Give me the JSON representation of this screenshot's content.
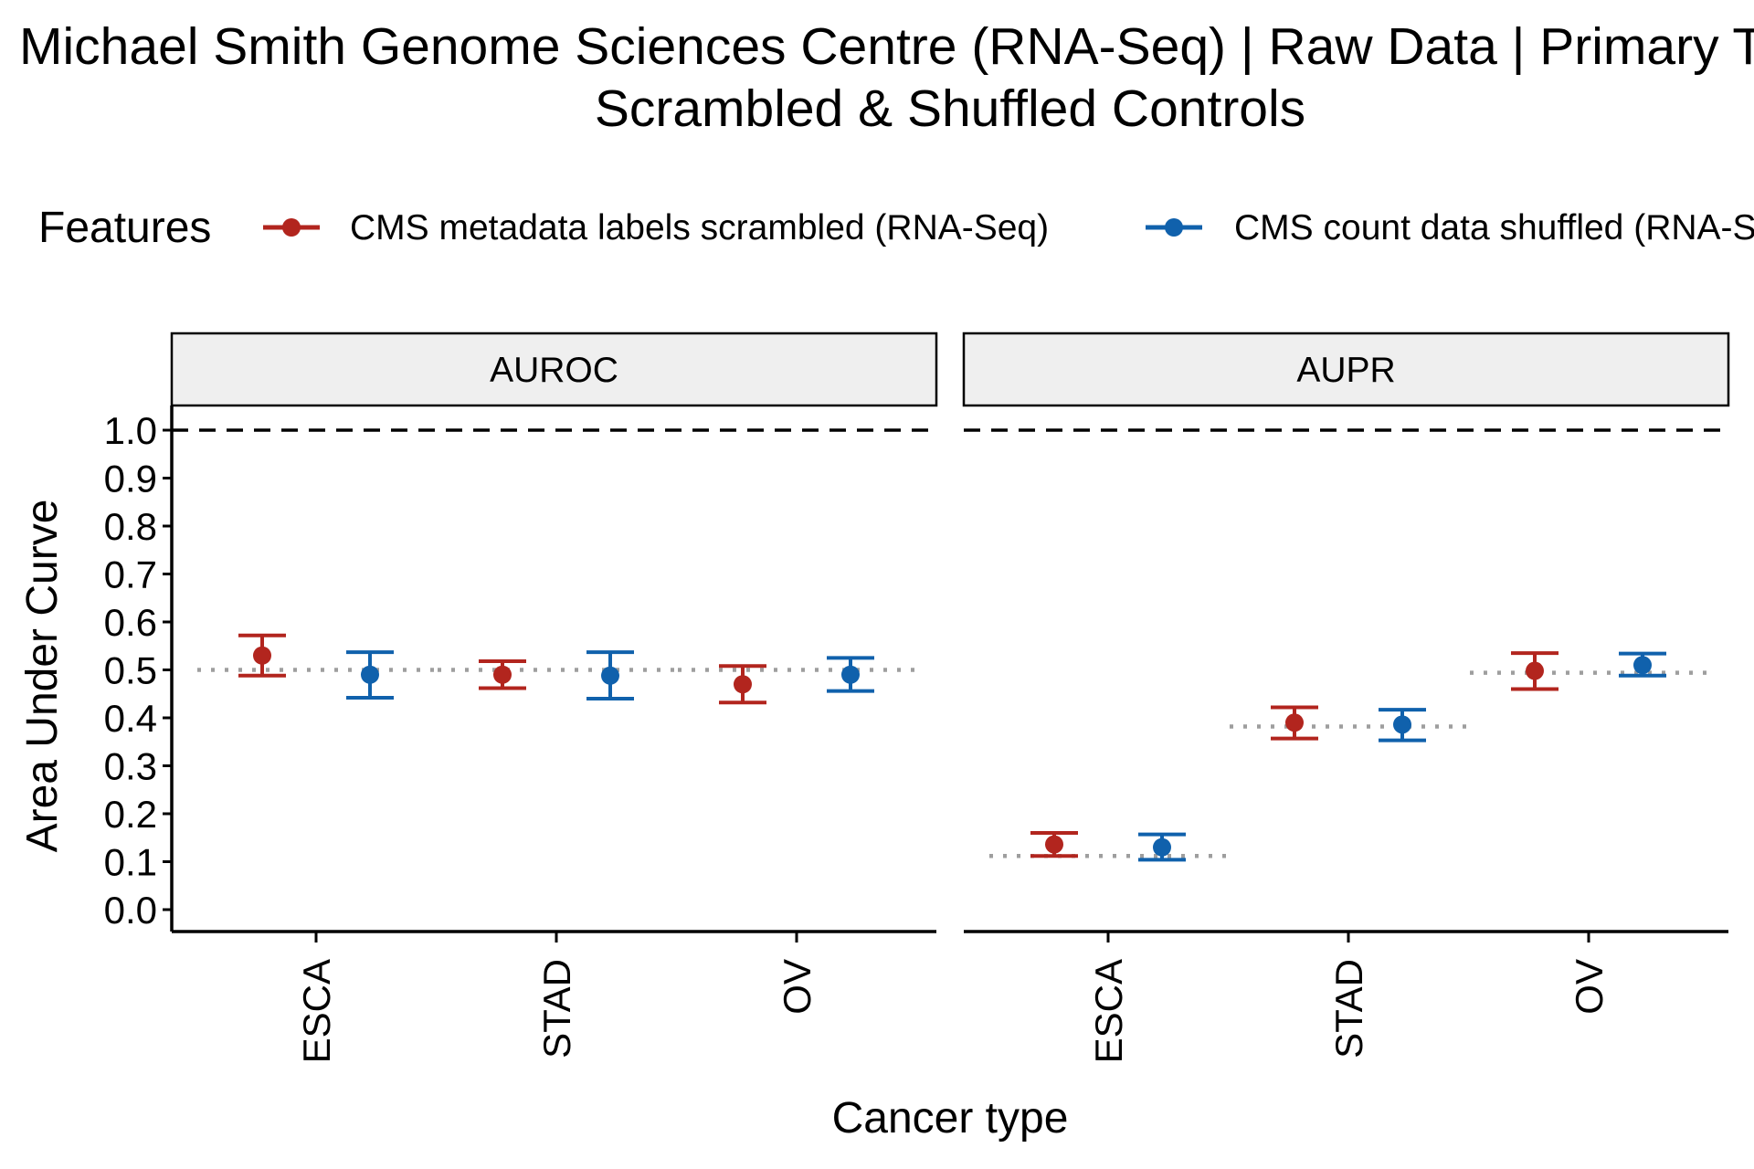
{
  "chart_data": {
    "type": "scatter",
    "title": "Michael Smith Genome Sciences Centre (RNA-Seq) | Raw Data | Primary Tumor",
    "subtitle": "Scrambled & Shuffled Controls",
    "xlabel": "Cancer type",
    "ylabel": "Area Under Curve",
    "ylim": [
      0.0,
      1.0
    ],
    "yticks": [
      "0.0",
      "0.1",
      "0.2",
      "0.3",
      "0.4",
      "0.5",
      "0.6",
      "0.7",
      "0.8",
      "0.9",
      "1.0"
    ],
    "grid": false,
    "reference_line": 1.0,
    "legend": {
      "title": "Features",
      "position": "top",
      "entries": [
        {
          "name": "CMS metadata labels scrambled (RNA-Seq)",
          "color": "#B2251E"
        },
        {
          "name": "CMS count data shuffled (RNA-Seq)",
          "color": "#1061AC"
        }
      ]
    },
    "categories": [
      "ESCA",
      "STAD",
      "OV"
    ],
    "panels": [
      {
        "name": "AUROC",
        "baselines": [
          0.5,
          0.5,
          0.5
        ],
        "series": [
          {
            "name": "CMS metadata labels scrambled (RNA-Seq)",
            "color": "#B2251E",
            "values": [
              0.53,
              0.49,
              0.47
            ],
            "lower": [
              0.488,
              0.462,
              0.432
            ],
            "upper": [
              0.572,
              0.518,
              0.508
            ]
          },
          {
            "name": "CMS count data shuffled (RNA-Seq)",
            "color": "#1061AC",
            "values": [
              0.49,
              0.488,
              0.49
            ],
            "lower": [
              0.442,
              0.44,
              0.456
            ],
            "upper": [
              0.537,
              0.537,
              0.525
            ]
          }
        ]
      },
      {
        "name": "AUPR",
        "baselines": [
          0.112,
          0.382,
          0.494
        ],
        "series": [
          {
            "name": "CMS metadata labels scrambled (RNA-Seq)",
            "color": "#B2251E",
            "values": [
              0.136,
              0.39,
              0.498
            ],
            "lower": [
              0.112,
              0.357,
              0.46
            ],
            "upper": [
              0.16,
              0.422,
              0.535
            ]
          },
          {
            "name": "CMS count data shuffled (RNA-Seq)",
            "color": "#1061AC",
            "values": [
              0.13,
              0.386,
              0.51
            ],
            "lower": [
              0.104,
              0.353,
              0.488
            ],
            "upper": [
              0.157,
              0.417,
              0.534
            ]
          }
        ]
      }
    ]
  }
}
